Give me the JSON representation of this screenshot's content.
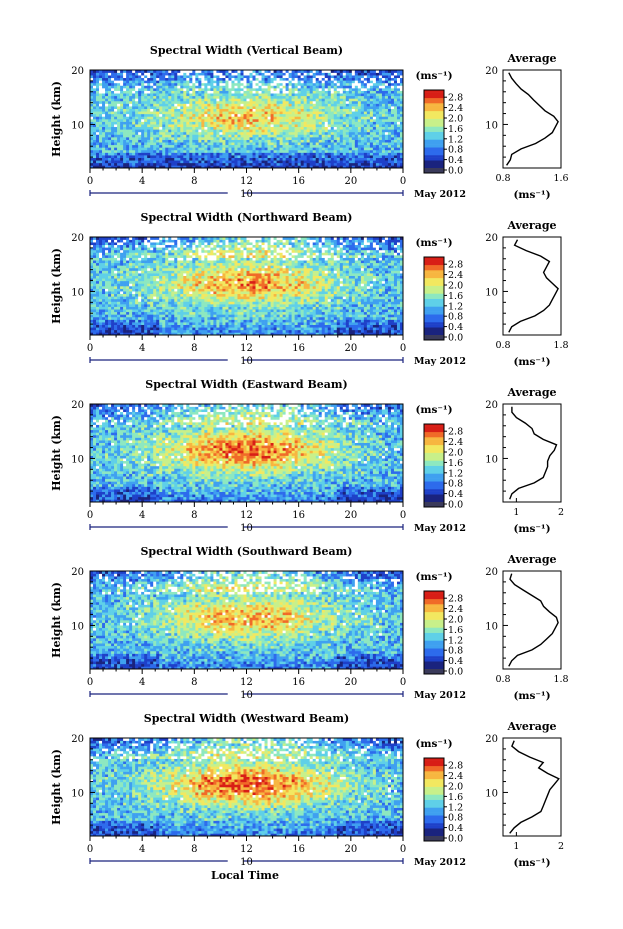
{
  "figure": {
    "xlabel": "Local Time",
    "date_label": "May 2012",
    "day_marker": "10",
    "colorbar_unit": "(ms⁻¹)",
    "colorbar_ticks": [
      "0.0",
      "0.4",
      "0.8",
      "1.2",
      "1.6",
      "2.0",
      "2.4",
      "2.8"
    ],
    "colorbar_range": [
      0.0,
      3.0
    ],
    "colorscale": [
      "#1a237e",
      "#1e40c8",
      "#2d6bec",
      "#3fa0f0",
      "#5fd0e8",
      "#8de8c0",
      "#c8f08a",
      "#f2e860",
      "#f7b640",
      "#f06a28",
      "#d81e16"
    ],
    "height_label": "Height (km)",
    "avg_title": "Average",
    "avg_xlabel": "(ms⁻¹)"
  },
  "chart_data": [
    {
      "type": "heatmap",
      "title": "Spectral Width (Vertical Beam)",
      "ylabel": "Height (km)",
      "xlabel": "Local Time",
      "xlim": [
        0,
        24
      ],
      "xticks": [
        "0",
        "4",
        "8",
        "12",
        "16",
        "20",
        "0"
      ],
      "ylim": [
        2,
        20
      ],
      "yticks": [
        "10",
        "20"
      ],
      "colorbar": {
        "label": "(ms⁻¹)",
        "range": [
          0.0,
          3.0
        ],
        "ticks": [
          "0.0",
          "0.4",
          "0.8",
          "1.2",
          "1.6",
          "2.0",
          "2.4",
          "2.8"
        ]
      },
      "profile": {
        "title": "Average",
        "xlabel": "(ms⁻¹)",
        "xlim": [
          0.8,
          1.6
        ],
        "xticks": [
          "0.8",
          "1.6"
        ],
        "yticks": [
          "10",
          "20"
        ],
        "height_km": [
          2.5,
          3.5,
          4.5,
          5.5,
          6.5,
          7.5,
          8.5,
          9.5,
          10.5,
          11.5,
          12.5,
          13.5,
          14.5,
          15.5,
          16.5,
          17.5,
          18.5,
          19.5
        ],
        "value": [
          0.85,
          0.9,
          0.92,
          1.05,
          1.25,
          1.38,
          1.48,
          1.52,
          1.56,
          1.5,
          1.38,
          1.3,
          1.22,
          1.15,
          1.05,
          0.98,
          0.92,
          0.88
        ]
      }
    },
    {
      "type": "heatmap",
      "title": "Spectral Width (Northward Beam)",
      "ylabel": "Height (km)",
      "xlabel": "Local Time",
      "xlim": [
        0,
        24
      ],
      "xticks": [
        "0",
        "4",
        "8",
        "12",
        "16",
        "20",
        "0"
      ],
      "ylim": [
        2,
        20
      ],
      "yticks": [
        "10",
        "20"
      ],
      "colorbar": {
        "label": "(ms⁻¹)",
        "range": [
          0.0,
          3.0
        ],
        "ticks": [
          "0.0",
          "0.4",
          "0.8",
          "1.2",
          "1.6",
          "2.0",
          "2.4",
          "2.8"
        ]
      },
      "profile": {
        "title": "Average",
        "xlabel": "(ms⁻¹)",
        "xlim": [
          0.8,
          1.8
        ],
        "xticks": [
          "0.8",
          "1.8"
        ],
        "yticks": [
          "10",
          "20"
        ],
        "height_km": [
          2.5,
          3.5,
          4.5,
          5.5,
          6.5,
          7.5,
          8.5,
          9.5,
          10.5,
          11.5,
          12.5,
          13.5,
          14.5,
          15.5,
          16.5,
          17.5,
          18.5,
          19.5
        ],
        "value": [
          0.9,
          0.95,
          1.1,
          1.35,
          1.5,
          1.6,
          1.65,
          1.7,
          1.75,
          1.65,
          1.55,
          1.5,
          1.55,
          1.6,
          1.45,
          1.2,
          1.0,
          1.05
        ]
      }
    },
    {
      "type": "heatmap",
      "title": "Spectral Width (Eastward Beam)",
      "ylabel": "Height (km)",
      "xlabel": "Local Time",
      "xlim": [
        0,
        24
      ],
      "xticks": [
        "0",
        "4",
        "8",
        "12",
        "16",
        "20",
        "0"
      ],
      "ylim": [
        2,
        20
      ],
      "yticks": [
        "10",
        "20"
      ],
      "colorbar": {
        "label": "(ms⁻¹)",
        "range": [
          0.0,
          3.0
        ],
        "ticks": [
          "0.0",
          "0.4",
          "0.8",
          "1.2",
          "1.6",
          "2.0",
          "2.4",
          "2.8"
        ]
      },
      "profile": {
        "title": "Average",
        "xlabel": "(ms⁻¹)",
        "xlim": [
          0.7,
          2.0
        ],
        "xticks": [
          "1",
          "2"
        ],
        "yticks": [
          "10",
          "20"
        ],
        "height_km": [
          2.5,
          3.5,
          4.5,
          5.5,
          6.5,
          7.5,
          8.5,
          9.5,
          10.5,
          11.5,
          12.5,
          13.5,
          14.5,
          15.5,
          16.5,
          17.5,
          18.5,
          19.5
        ],
        "value": [
          0.85,
          0.9,
          1.05,
          1.4,
          1.6,
          1.65,
          1.7,
          1.7,
          1.75,
          1.85,
          1.9,
          1.6,
          1.4,
          1.35,
          1.2,
          1.0,
          0.9,
          0.9
        ]
      }
    },
    {
      "type": "heatmap",
      "title": "Spectral Width (Southward Beam)",
      "ylabel": "Height (km)",
      "xlabel": "Local Time",
      "xlim": [
        0,
        24
      ],
      "xticks": [
        "0",
        "4",
        "8",
        "12",
        "16",
        "20",
        "0"
      ],
      "ylim": [
        2,
        20
      ],
      "yticks": [
        "10",
        "20"
      ],
      "colorbar": {
        "label": "(ms⁻¹)",
        "range": [
          0.0,
          3.0
        ],
        "ticks": [
          "0.0",
          "0.4",
          "0.8",
          "1.2",
          "1.6",
          "2.0",
          "2.4",
          "2.8"
        ]
      },
      "profile": {
        "title": "Average",
        "xlabel": "(ms⁻¹)",
        "xlim": [
          0.8,
          1.8
        ],
        "xticks": [
          "0.8",
          "1.8"
        ],
        "yticks": [
          "10",
          "20"
        ],
        "height_km": [
          2.5,
          3.5,
          4.5,
          5.5,
          6.5,
          7.5,
          8.5,
          9.5,
          10.5,
          11.5,
          12.5,
          13.5,
          14.5,
          15.5,
          16.5,
          17.5,
          18.5,
          19.5
        ],
        "value": [
          0.9,
          0.95,
          1.05,
          1.3,
          1.45,
          1.55,
          1.65,
          1.7,
          1.75,
          1.72,
          1.6,
          1.5,
          1.45,
          1.3,
          1.15,
          1.0,
          0.92,
          0.95
        ]
      }
    },
    {
      "type": "heatmap",
      "title": "Spectral Width (Westward Beam)",
      "ylabel": "Height (km)",
      "xlabel": "Local Time",
      "xlim": [
        0,
        24
      ],
      "xticks": [
        "0",
        "4",
        "8",
        "12",
        "16",
        "20",
        "0"
      ],
      "ylim": [
        2,
        20
      ],
      "yticks": [
        "10",
        "20"
      ],
      "colorbar": {
        "label": "(ms⁻¹)",
        "range": [
          0.0,
          3.0
        ],
        "ticks": [
          "0.0",
          "0.4",
          "0.8",
          "1.2",
          "1.6",
          "2.0",
          "2.4",
          "2.8"
        ]
      },
      "profile": {
        "title": "Average",
        "xlabel": "(ms⁻¹)",
        "xlim": [
          0.7,
          2.0
        ],
        "xticks": [
          "1",
          "2"
        ],
        "yticks": [
          "10",
          "20"
        ],
        "height_km": [
          2.5,
          3.5,
          4.5,
          5.5,
          6.5,
          7.5,
          8.5,
          9.5,
          10.5,
          11.5,
          12.5,
          13.5,
          14.5,
          15.5,
          16.5,
          17.5,
          18.5,
          19.5
        ],
        "value": [
          0.85,
          0.95,
          1.1,
          1.35,
          1.55,
          1.6,
          1.65,
          1.7,
          1.75,
          1.85,
          1.95,
          1.7,
          1.5,
          1.6,
          1.3,
          1.05,
          0.9,
          0.95
        ]
      }
    }
  ]
}
